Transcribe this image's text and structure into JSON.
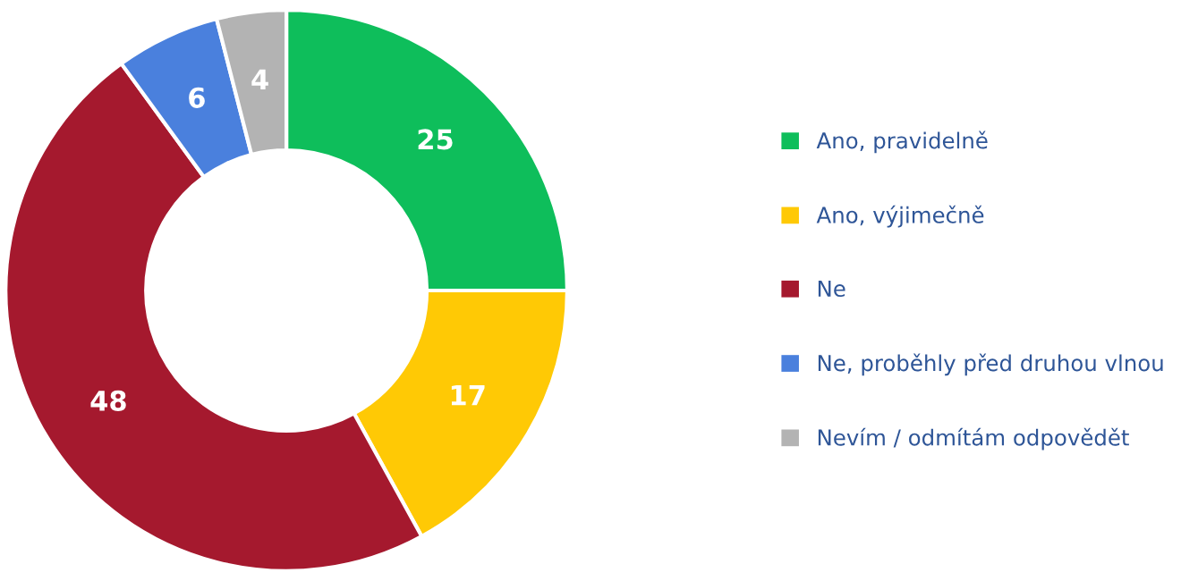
{
  "chart_data": {
    "type": "donut",
    "categories": [
      "Ano, pravidelně",
      "Ano, výjimečně",
      "Ne",
      "Ne, proběhly před druhou vlnou",
      "Nevím / odmítám odpovědět"
    ],
    "values": [
      25,
      17,
      48,
      6,
      4
    ],
    "colors": [
      "#0ebe5b",
      "#ffc905",
      "#a5192e",
      "#4a80dd",
      "#b3b3b3"
    ],
    "data_labels": true,
    "legend": "right"
  }
}
